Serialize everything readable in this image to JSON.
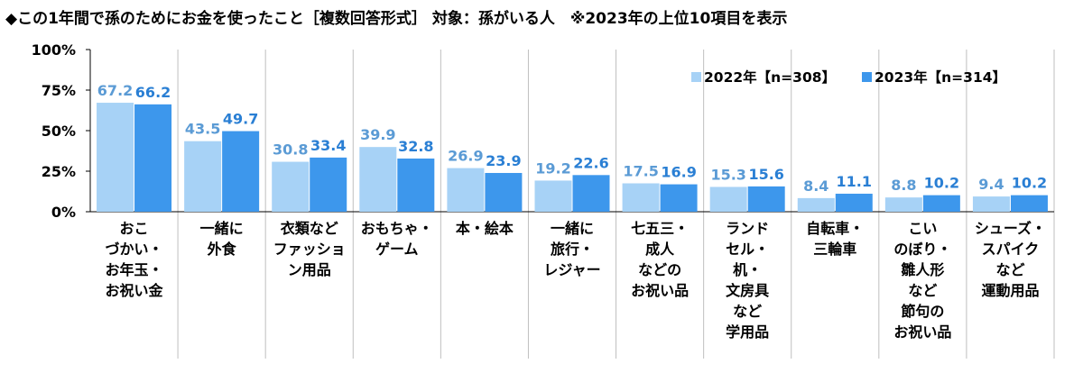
{
  "chart_data": {
    "type": "bar",
    "title": "◆この1年間で孫のためにお金を使ったこと［複数回答形式］ 対象：孫がいる人　※2023年の上位10項目を表示",
    "xlabel": "",
    "ylabel": "",
    "ylim": [
      0,
      100
    ],
    "y_ticks": [
      "0%",
      "25%",
      "50%",
      "75%",
      "100%"
    ],
    "y_tick_values": [
      0,
      25,
      50,
      75,
      100
    ],
    "grid": false,
    "legend_position": "top-right",
    "categories": [
      "おこ\nづかい・\nお年玉・\nお祝い金",
      "一緒に\n外食",
      "衣類など\nファッショ\nン用品",
      "おもちゃ・\nゲーム",
      "本・絵本",
      "一緒に\n旅行・\nレジャー",
      "七五三・\n成人\nなどの\nお祝い品",
      "ランド\nセル・\n机・\n文房具\nなど\n学用品",
      "自転車・\n三輪車",
      "こい\nのぼり・\n雛人形\nなど\n節句の\nお祝い品",
      "シューズ・\nスパイク\nなど\n運動用品"
    ],
    "series": [
      {
        "name": "2022年【n=308】",
        "color": "#a7d2f6",
        "label_color": "#5b9bd5",
        "values": [
          67.2,
          43.5,
          30.8,
          39.9,
          26.9,
          19.2,
          17.5,
          15.3,
          8.4,
          8.8,
          9.4
        ]
      },
      {
        "name": "2023年【n=314】",
        "color": "#3d97ec",
        "label_color": "#2a7fd4",
        "values": [
          66.2,
          49.7,
          33.4,
          32.8,
          23.9,
          22.6,
          16.9,
          15.6,
          11.1,
          10.2,
          10.2
        ]
      }
    ]
  }
}
